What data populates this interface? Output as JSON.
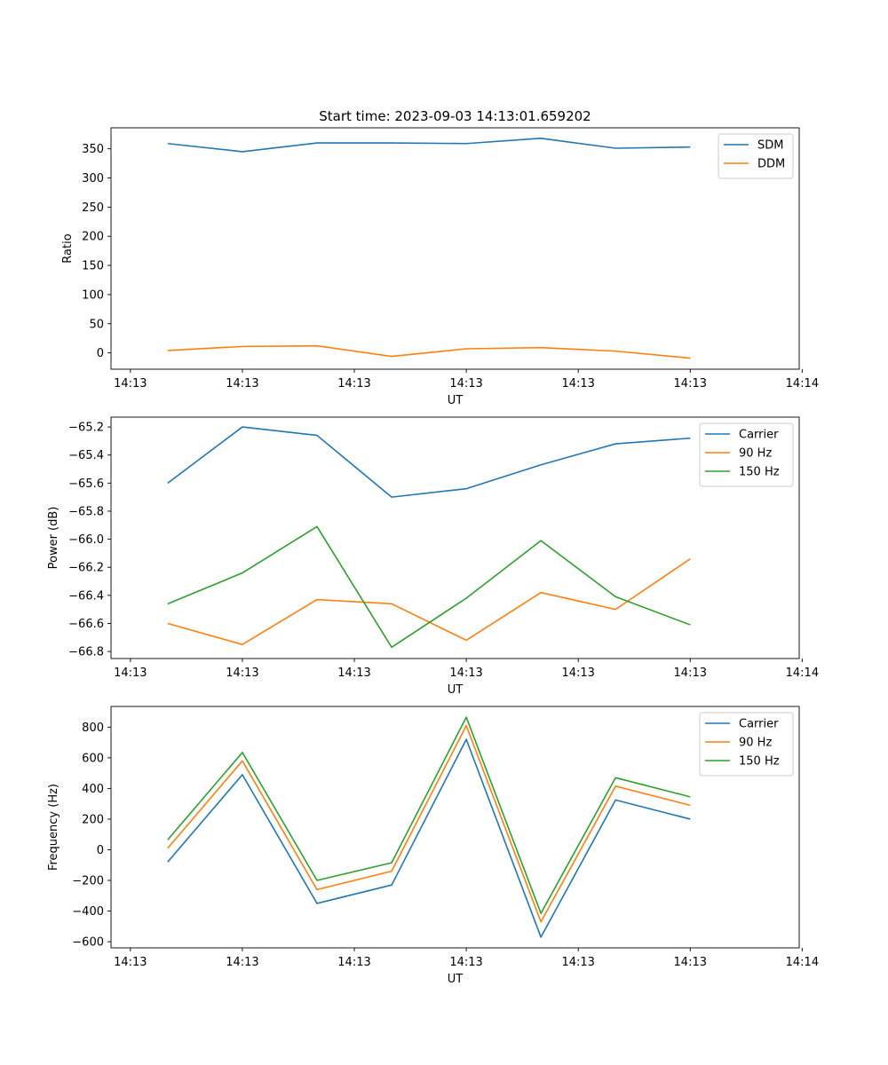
{
  "figure_title": "Start time: 2023-09-03 14:13:01.659202",
  "chart_data": [
    {
      "type": "line",
      "title": "Start time: 2023-09-03 14:13:01.659202",
      "xlabel": "UT",
      "ylabel": "Ratio",
      "x": [
        1,
        2,
        3,
        4,
        5,
        6,
        7,
        8
      ],
      "xlim": [
        0.24,
        9.46
      ],
      "x_ticks": [
        0.5,
        2,
        3.5,
        5,
        6.5,
        8,
        9.5
      ],
      "x_tick_labels": [
        "14:13",
        "14:13",
        "14:13",
        "14:13",
        "14:13",
        "14:13",
        "14:14"
      ],
      "ylim": [
        -28,
        386
      ],
      "y_ticks": [
        0,
        50,
        100,
        150,
        200,
        250,
        300,
        350
      ],
      "y_tick_labels": [
        "0",
        "50",
        "100",
        "150",
        "200",
        "250",
        "300",
        "350"
      ],
      "legend": "top-right",
      "series": [
        {
          "name": "SDM",
          "color": "#1f77b4",
          "values": [
            359,
            345,
            360,
            360,
            359,
            368,
            351,
            353
          ]
        },
        {
          "name": "DDM",
          "color": "#ff7f0e",
          "values": [
            4,
            11,
            12,
            -6,
            7,
            9,
            3,
            -9
          ]
        }
      ]
    },
    {
      "type": "line",
      "xlabel": "UT",
      "ylabel": "Power (dB)",
      "x": [
        1,
        2,
        3,
        4,
        5,
        6,
        7,
        8
      ],
      "xlim": [
        0.24,
        9.46
      ],
      "x_ticks": [
        0.5,
        2,
        3.5,
        5,
        6.5,
        8,
        9.5
      ],
      "x_tick_labels": [
        "14:13",
        "14:13",
        "14:13",
        "14:13",
        "14:13",
        "14:13",
        "14:14"
      ],
      "ylim": [
        -66.85,
        -65.13
      ],
      "y_ticks": [
        -66.8,
        -66.6,
        -66.4,
        -66.2,
        -66.0,
        -65.8,
        -65.6,
        -65.4,
        -65.2
      ],
      "y_tick_labels": [
        "−66.8",
        "−66.6",
        "−66.4",
        "−66.2",
        "−66.0",
        "−65.8",
        "−65.6",
        "−65.4",
        "−65.2"
      ],
      "legend": "top-right",
      "series": [
        {
          "name": "Carrier",
          "color": "#1f77b4",
          "values": [
            -65.6,
            -65.2,
            -65.26,
            -65.7,
            -65.64,
            -65.47,
            -65.32,
            -65.28
          ]
        },
        {
          "name": "90 Hz",
          "color": "#ff7f0e",
          "values": [
            -66.6,
            -66.75,
            -66.43,
            -66.46,
            -66.72,
            -66.38,
            -66.5,
            -66.14
          ]
        },
        {
          "name": "150 Hz",
          "color": "#2ca02c",
          "values": [
            -66.46,
            -66.24,
            -65.91,
            -66.77,
            -66.42,
            -66.01,
            -66.41,
            -66.61
          ]
        }
      ]
    },
    {
      "type": "line",
      "xlabel": "UT",
      "ylabel": "Frequency (Hz)",
      "x": [
        1,
        2,
        3,
        4,
        5,
        6,
        7,
        8
      ],
      "xlim": [
        0.24,
        9.46
      ],
      "x_ticks": [
        0.5,
        2,
        3.5,
        5,
        6.5,
        8,
        9.5
      ],
      "x_tick_labels": [
        "14:13",
        "14:13",
        "14:13",
        "14:13",
        "14:13",
        "14:13",
        "14:14"
      ],
      "ylim": [
        -640,
        935
      ],
      "y_ticks": [
        -600,
        -400,
        -200,
        0,
        200,
        400,
        600,
        800
      ],
      "y_tick_labels": [
        "−600",
        "−400",
        "−200",
        "0",
        "200",
        "400",
        "600",
        "800"
      ],
      "legend": "top-right",
      "series": [
        {
          "name": "Carrier",
          "color": "#1f77b4",
          "values": [
            -80,
            490,
            -350,
            -230,
            720,
            -570,
            325,
            200
          ]
        },
        {
          "name": "90 Hz",
          "color": "#ff7f0e",
          "values": [
            10,
            580,
            -260,
            -140,
            810,
            -470,
            415,
            290
          ]
        },
        {
          "name": "150 Hz",
          "color": "#2ca02c",
          "values": [
            65,
            635,
            -200,
            -85,
            865,
            -415,
            470,
            345
          ]
        }
      ]
    }
  ]
}
